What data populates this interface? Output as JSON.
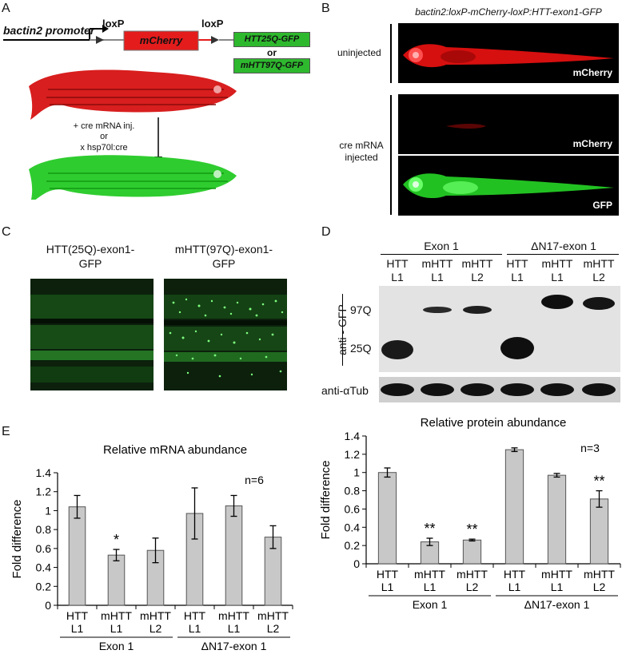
{
  "panel_a": {
    "label": "A",
    "promoter": "bactin2 promoter",
    "loxp_1": "loxP",
    "loxp_2": "loxP",
    "mcherry": "mCherry",
    "htt25": "HTT25Q-GFP",
    "or_text": "or",
    "mhtt97": "mHTT97Q-GFP",
    "step_1": "+ cre mRNA inj.",
    "step_or": "or",
    "step_2": "x hsp70l:cre",
    "colors": {
      "red_fish": "#d81e1e",
      "green_fish": "#2fcc2f",
      "mcherry_box": "#e41c1c"
    }
  },
  "panel_b": {
    "label": "B",
    "title": "bactin2:loxP-mCherry-loxP:HTT-exon1-GFP",
    "uninjected": "uninjected",
    "cre_injected_1": "cre mRNA",
    "cre_injected_2": "injected",
    "ch1": "mCherry",
    "ch2": "mCherry",
    "ch3": "GFP"
  },
  "panel_c": {
    "label": "C",
    "left_1": "HTT(25Q)-exon1-",
    "left_2": "GFP",
    "right_1": "mHTT(97Q)-exon1-",
    "right_2": "GFP"
  },
  "panel_d": {
    "label": "D",
    "group_1": "Exon 1",
    "group_2": "ΔN17-exon 1",
    "lanes_top": [
      "HTT",
      "mHTT",
      "mHTT",
      "HTT",
      "mHTT",
      "mHTT"
    ],
    "lanes_bottom": [
      "L1",
      "L1",
      "L2",
      "L1",
      "L1",
      "L2"
    ],
    "antibody": "anti - GFP",
    "band_97q": "97Q",
    "band_25q": "25Q",
    "loading": "anti-αTub"
  },
  "panel_e": {
    "label": "E"
  },
  "chart_data": [
    {
      "type": "bar",
      "title": "Relative mRNA abundance",
      "ylabel": "Fold difference",
      "ylim": [
        0,
        1.4
      ],
      "yticks": [
        "0",
        "0.2",
        "0.4",
        "0.6",
        "0.8",
        "1",
        "1.2",
        "1.4"
      ],
      "categories_top": [
        "HTT",
        "mHTT",
        "mHTT",
        "HTT",
        "mHTT",
        "mHTT"
      ],
      "categories_bottom": [
        "L1",
        "L1",
        "L2",
        "L1",
        "L1",
        "L2"
      ],
      "values": [
        1.04,
        0.53,
        0.58,
        0.97,
        1.05,
        0.72
      ],
      "errors": [
        0.12,
        0.06,
        0.13,
        0.27,
        0.11,
        0.12
      ],
      "significance": [
        "",
        "*",
        "",
        "",
        "",
        ""
      ],
      "groups": [
        "Exon 1",
        "ΔN17-exon 1"
      ],
      "annotation": "n=6"
    },
    {
      "type": "bar",
      "title": "Relative protein abundance",
      "ylabel": "Fold difference",
      "ylim": [
        0,
        1.4
      ],
      "yticks": [
        "0",
        "0.2",
        "0.4",
        "0.6",
        "0.8",
        "1",
        "1.2",
        "1.4"
      ],
      "categories_top": [
        "HTT",
        "mHTT",
        "mHTT",
        "HTT",
        "mHTT",
        "mHTT"
      ],
      "categories_bottom": [
        "L1",
        "L1",
        "L2",
        "L1",
        "L1",
        "L2"
      ],
      "values": [
        1.0,
        0.24,
        0.26,
        1.25,
        0.97,
        0.71
      ],
      "errors": [
        0.05,
        0.04,
        0.01,
        0.02,
        0.02,
        0.09
      ],
      "significance": [
        "",
        "**",
        "**",
        "",
        "",
        "**"
      ],
      "groups": [
        "Exon 1",
        "ΔN17-exon 1"
      ],
      "annotation": "n=3"
    }
  ]
}
